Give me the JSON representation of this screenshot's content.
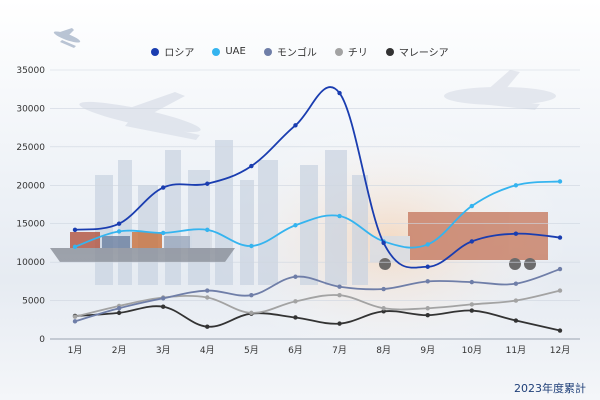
{
  "chart_data": {
    "type": "line",
    "categories": [
      "1月",
      "2月",
      "3月",
      "4月",
      "5月",
      "6月",
      "7月",
      "8月",
      "9月",
      "10月",
      "11月",
      "12月"
    ],
    "ylim": [
      0,
      35000
    ],
    "yticks": [
      0,
      5000,
      10000,
      15000,
      20000,
      25000,
      30000,
      35000
    ],
    "grid": true,
    "legend_position": "top-center",
    "series": [
      {
        "name": "ロシア",
        "color": "#1a3db0",
        "values": [
          14200,
          15000,
          19700,
          20200,
          22500,
          27800,
          32000,
          12500,
          9400,
          12700,
          13700,
          13200
        ]
      },
      {
        "name": "UAE",
        "color": "#35b4ef",
        "values": [
          12000,
          14000,
          13800,
          14200,
          12100,
          14800,
          16000,
          12700,
          12300,
          17300,
          20000,
          20500
        ]
      },
      {
        "name": "モンゴル",
        "color": "#6f7ea8",
        "values": [
          2300,
          4000,
          5300,
          6300,
          5700,
          8100,
          6800,
          6500,
          7500,
          7400,
          7200,
          9100
        ]
      },
      {
        "name": "チリ",
        "color": "#a3a3a3",
        "values": [
          2900,
          4300,
          5400,
          5400,
          3400,
          4900,
          5700,
          4000,
          4000,
          4500,
          5000,
          6300
        ]
      },
      {
        "name": "マレーシア",
        "color": "#333333",
        "values": [
          3000,
          3400,
          4200,
          1600,
          3300,
          2800,
          2000,
          3600,
          3100,
          3700,
          2400,
          1100
        ]
      }
    ]
  },
  "footnote": "2023年度累計"
}
